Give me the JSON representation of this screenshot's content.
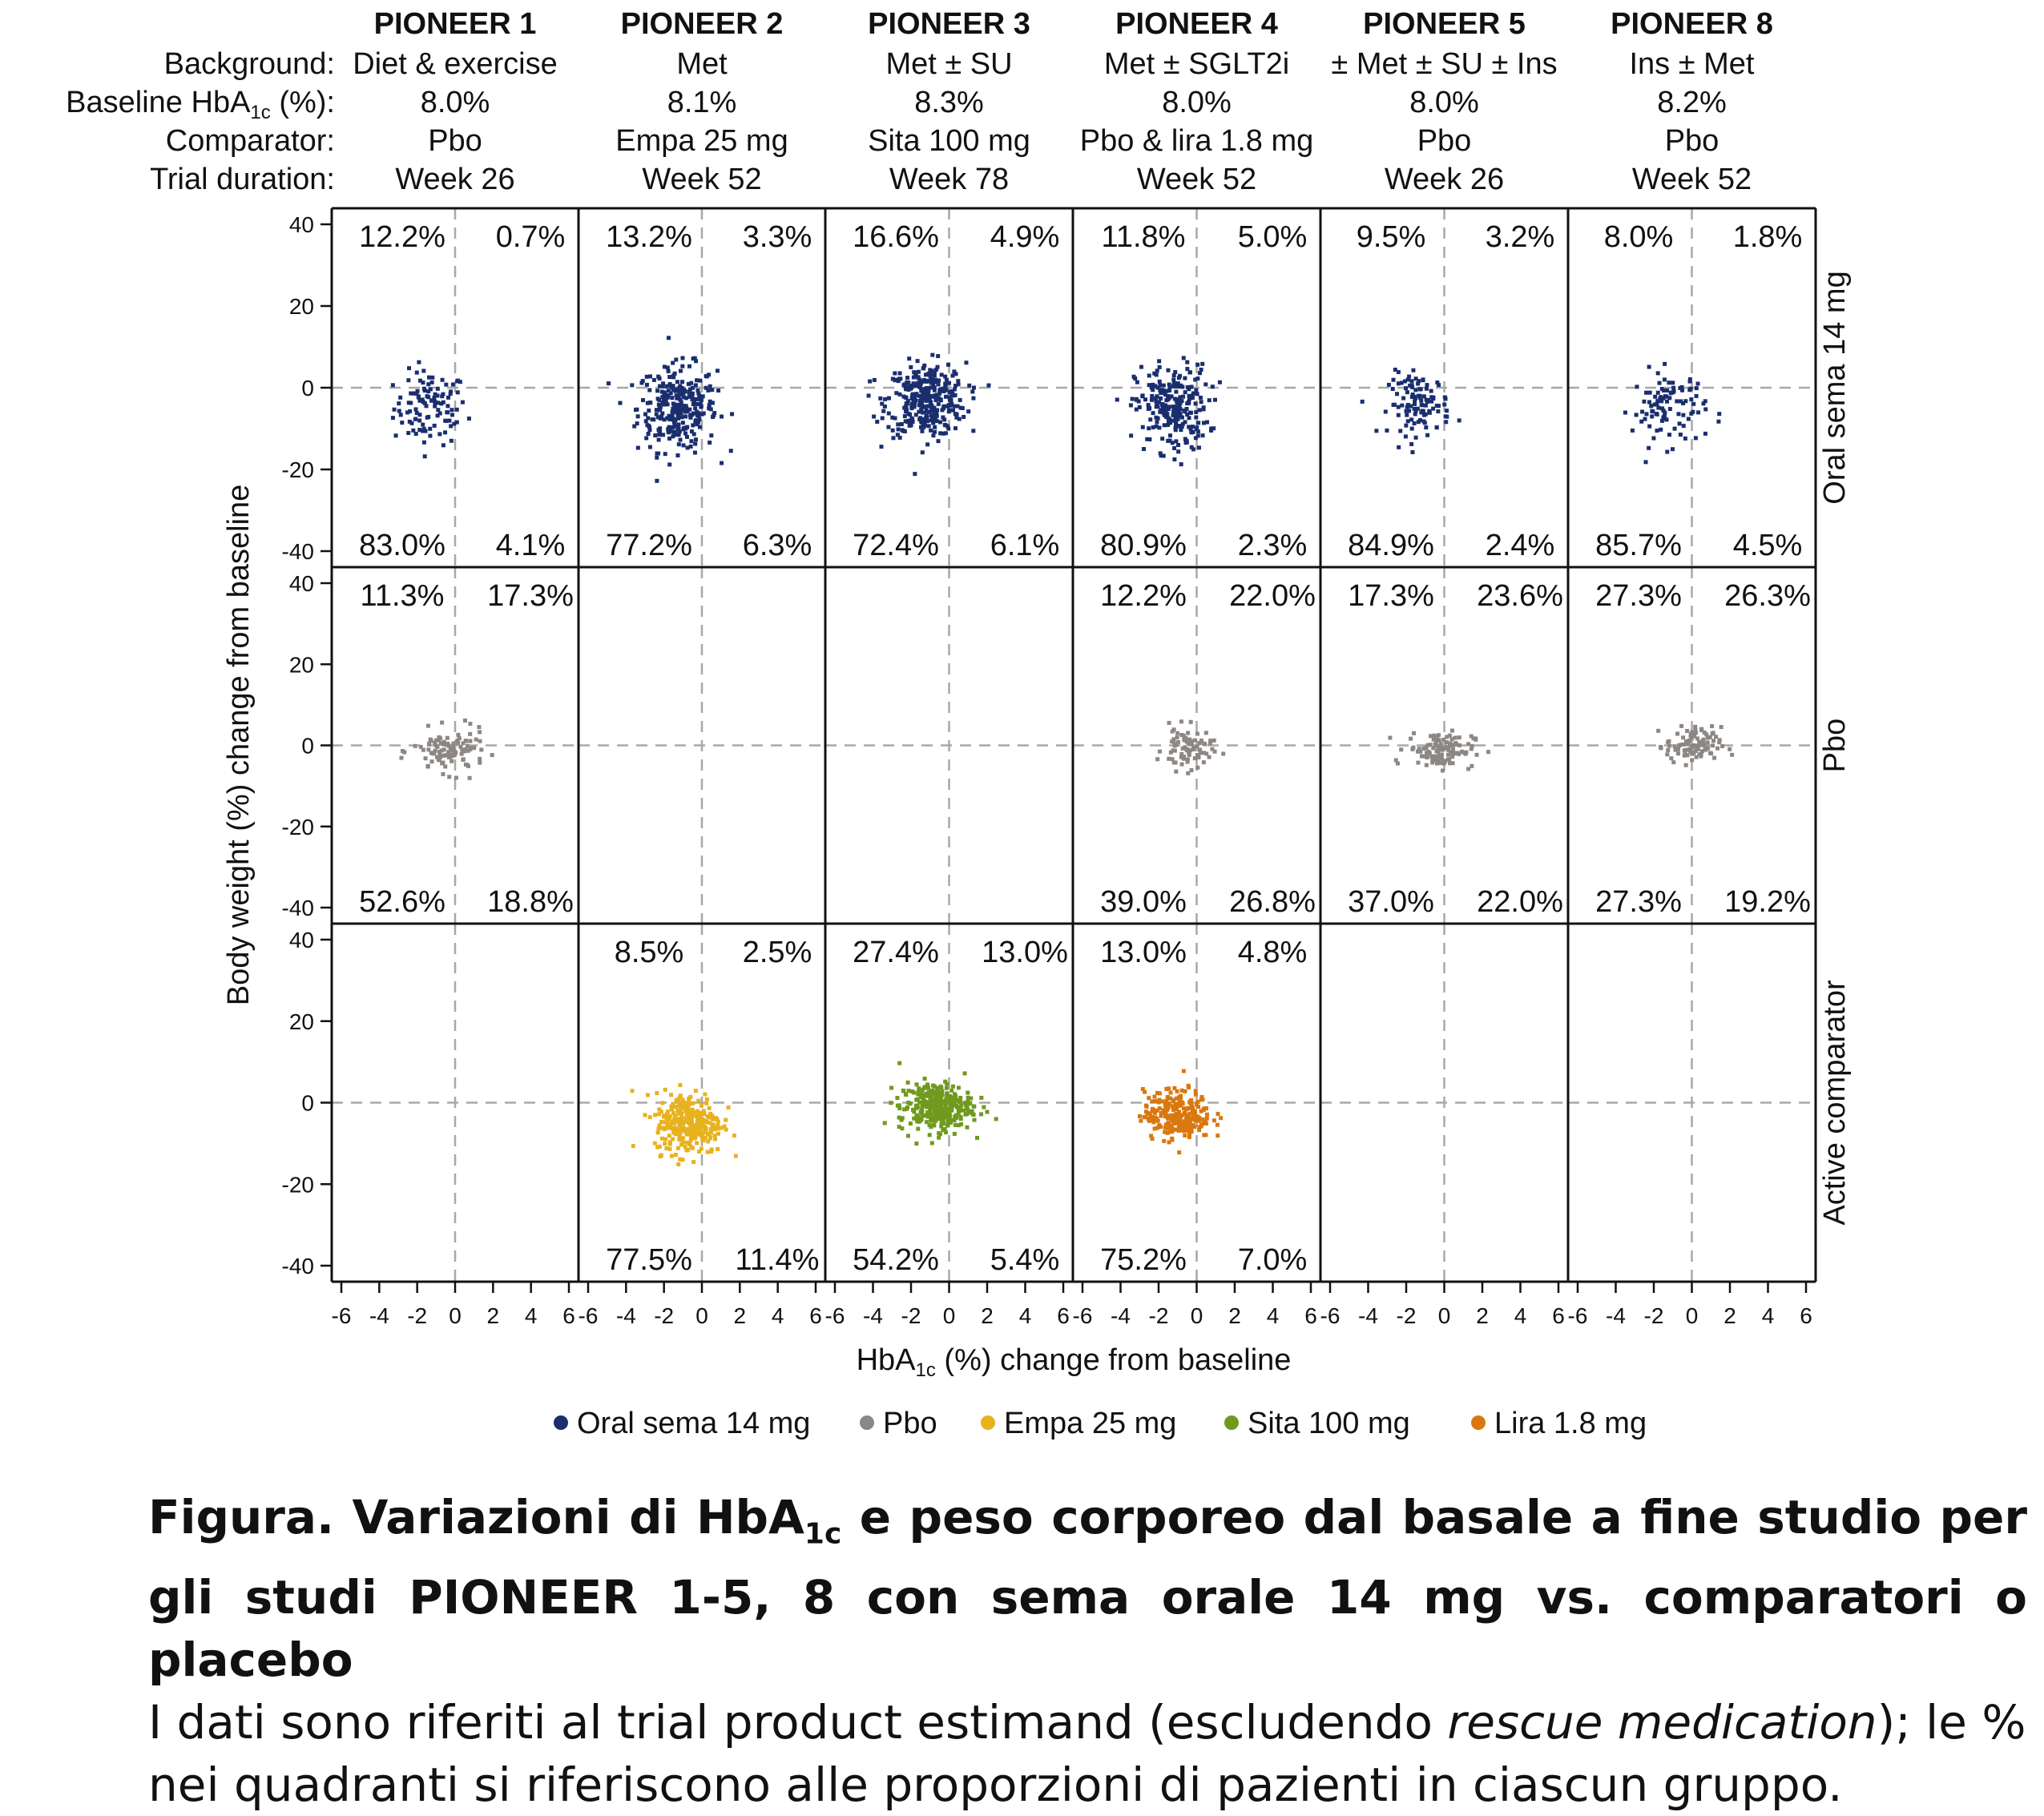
{
  "header": {
    "row_labels": {
      "background": "Background:",
      "hba1c_prefix": "Baseline HbA",
      "hba1c_sub": "1c",
      "hba1c_suffix": " (%):",
      "comparator": "Comparator:",
      "duration": "Trial duration:"
    },
    "trials": [
      {
        "name": "PIONEER 1",
        "background": "Diet & exercise",
        "baseline_hba1c": "8.0%",
        "comparator": "Pbo",
        "duration": "Week 26"
      },
      {
        "name": "PIONEER 2",
        "background": "Met",
        "baseline_hba1c": "8.1%",
        "comparator": "Empa 25 mg",
        "duration": "Week 52"
      },
      {
        "name": "PIONEER 3",
        "background": "Met ± SU",
        "baseline_hba1c": "8.3%",
        "comparator": "Sita 100 mg",
        "duration": "Week 78"
      },
      {
        "name": "PIONEER 4",
        "background": "Met ± SGLT2i",
        "baseline_hba1c": "8.0%",
        "comparator": "Pbo & lira 1.8 mg",
        "duration": "Week 52"
      },
      {
        "name": "PIONEER 5",
        "background": "± Met ± SU ± Ins",
        "baseline_hba1c": "8.0%",
        "comparator": "Pbo",
        "duration": "Week 26"
      },
      {
        "name": "PIONEER 8",
        "background": "Ins ± Met",
        "baseline_hba1c": "8.2%",
        "comparator": "Pbo",
        "duration": "Week 52"
      }
    ]
  },
  "chart_data": {
    "type": "scatter",
    "xlabel_prefix": "HbA",
    "xlabel_sub": "1c",
    "xlabel_suffix": " (%) change from baseline",
    "ylabel": "Body weight (%) change from baseline",
    "xlim": [
      -6,
      6
    ],
    "ylim": [
      -40,
      40
    ],
    "xticks": [
      "-6",
      "-4",
      "-2",
      "0",
      "2",
      "4",
      "6"
    ],
    "yticks": [
      "-40",
      "-20",
      "0",
      "20",
      "40"
    ],
    "row_labels": [
      "Oral sema 14 mg",
      "Pbo",
      "Active comparator"
    ],
    "reference_lines": {
      "x": 0,
      "y": 0,
      "style": "dashed"
    },
    "series": [
      {
        "name": "Oral sema 14 mg",
        "color": "#1a2e6e"
      },
      {
        "name": "Pbo",
        "color": "#8c8784"
      },
      {
        "name": "Empa 25 mg",
        "color": "#e8b21e"
      },
      {
        "name": "Sita 100 mg",
        "color": "#6f9a1e"
      },
      {
        "name": "Lira 1.8 mg",
        "color": "#d9780f"
      }
    ],
    "panels": [
      {
        "row": 0,
        "col": 0,
        "series": "Oral sema 14 mg",
        "quadrants": {
          "tl": "12.2%",
          "tr": "0.7%",
          "bl": "83.0%",
          "br": "4.1%"
        },
        "center": [
          -1.3,
          -5
        ],
        "spread": [
          1.2,
          6
        ],
        "n": 110
      },
      {
        "row": 0,
        "col": 1,
        "series": "Oral sema 14 mg",
        "quadrants": {
          "tl": "13.2%",
          "tr": "3.3%",
          "bl": "77.2%",
          "br": "6.3%"
        },
        "center": [
          -1.3,
          -5
        ],
        "spread": [
          1.3,
          7
        ],
        "n": 300
      },
      {
        "row": 0,
        "col": 2,
        "series": "Oral sema 14 mg",
        "quadrants": {
          "tl": "16.6%",
          "tr": "4.9%",
          "bl": "72.4%",
          "br": "6.1%"
        },
        "center": [
          -1.2,
          -3
        ],
        "spread": [
          1.3,
          6
        ],
        "n": 340
      },
      {
        "row": 0,
        "col": 3,
        "series": "Oral sema 14 mg",
        "quadrants": {
          "tl": "11.8%",
          "tr": "5.0%",
          "bl": "80.9%",
          "br": "2.3%"
        },
        "center": [
          -1.3,
          -5
        ],
        "spread": [
          1.2,
          7
        ],
        "n": 250
      },
      {
        "row": 0,
        "col": 4,
        "series": "Oral sema 14 mg",
        "quadrants": {
          "tl": "9.5%",
          "tr": "3.2%",
          "bl": "84.9%",
          "br": "2.4%"
        },
        "center": [
          -1.3,
          -4
        ],
        "spread": [
          1.0,
          5
        ],
        "n": 110
      },
      {
        "row": 0,
        "col": 5,
        "series": "Oral sema 14 mg",
        "quadrants": {
          "tl": "8.0%",
          "tr": "1.8%",
          "bl": "85.7%",
          "br": "4.5%"
        },
        "center": [
          -1.2,
          -5
        ],
        "spread": [
          1.2,
          6
        ],
        "n": 100
      },
      {
        "row": 1,
        "col": 0,
        "series": "Pbo",
        "quadrants": {
          "tl": "11.3%",
          "tr": "17.3%",
          "bl": "52.6%",
          "br": "18.8%"
        },
        "center": [
          -0.3,
          -1.5
        ],
        "spread": [
          1.2,
          3.5
        ],
        "n": 110
      },
      {
        "row": 1,
        "col": 3,
        "series": "Pbo",
        "quadrants": {
          "tl": "12.2%",
          "tr": "22.0%",
          "bl": "39.0%",
          "br": "26.8%"
        },
        "center": [
          -0.5,
          -1
        ],
        "spread": [
          0.8,
          3.5
        ],
        "n": 80
      },
      {
        "row": 1,
        "col": 4,
        "series": "Pbo",
        "quadrants": {
          "tl": "17.3%",
          "tr": "23.6%",
          "bl": "37.0%",
          "br": "22.0%"
        },
        "center": [
          -0.2,
          -1
        ],
        "spread": [
          1.1,
          3
        ],
        "n": 120
      },
      {
        "row": 1,
        "col": 5,
        "series": "Pbo",
        "quadrants": {
          "tl": "27.3%",
          "tr": "26.3%",
          "bl": "27.3%",
          "br": "19.2%"
        },
        "center": [
          0.1,
          0
        ],
        "spread": [
          0.9,
          3
        ],
        "n": 100
      },
      {
        "row": 2,
        "col": 1,
        "series": "Empa 25 mg",
        "quadrants": {
          "tl": "8.5%",
          "tr": "2.5%",
          "bl": "77.5%",
          "br": "11.4%"
        },
        "center": [
          -0.7,
          -5
        ],
        "spread": [
          1.1,
          5
        ],
        "n": 300
      },
      {
        "row": 2,
        "col": 2,
        "series": "Sita 100 mg",
        "quadrants": {
          "tl": "27.4%",
          "tr": "13.0%",
          "bl": "54.2%",
          "br": "5.4%"
        },
        "center": [
          -0.7,
          -1
        ],
        "spread": [
          1.2,
          4
        ],
        "n": 320
      },
      {
        "row": 2,
        "col": 3,
        "series": "Lira 1.8 mg",
        "quadrants": {
          "tl": "13.0%",
          "tr": "4.8%",
          "bl": "75.2%",
          "br": "7.0%"
        },
        "center": [
          -1.0,
          -3
        ],
        "spread": [
          1.1,
          4
        ],
        "n": 250
      }
    ]
  },
  "caption": {
    "title_prefix": "Figura. Variazioni di HbA",
    "title_sub": "1c",
    "title_suffix": " e peso corporeo dal basale a fine studio per gli studi PIONEER 1-5, 8 con sema orale 14 mg vs. comparatori o placebo",
    "body_part1": "I dati sono riferiti al trial product estimand (escludendo ",
    "body_italic": "rescue medication",
    "body_part2": "); le % nei quadranti si riferiscono alle proporzioni di pazienti in ciascun gruppo."
  }
}
